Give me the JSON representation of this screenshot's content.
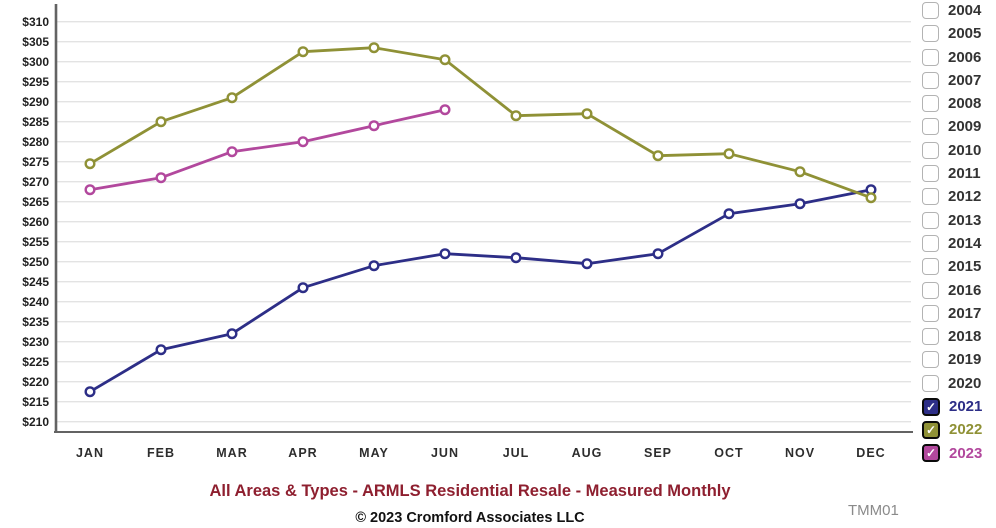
{
  "chart_data": {
    "type": "line",
    "categories": [
      "JAN",
      "FEB",
      "MAR",
      "APR",
      "MAY",
      "JUN",
      "JUL",
      "AUG",
      "SEP",
      "OCT",
      "NOV",
      "DEC"
    ],
    "series": [
      {
        "name": "2021",
        "color": "#2d2e87",
        "values": [
          217.5,
          228,
          232,
          243.5,
          249,
          252,
          251,
          249.5,
          252,
          262,
          264.5,
          268
        ]
      },
      {
        "name": "2022",
        "color": "#8f9136",
        "values": [
          274.5,
          285,
          291,
          302.5,
          303.5,
          300.5,
          286.5,
          287,
          276.5,
          277,
          272.5,
          266
        ]
      },
      {
        "name": "2023",
        "color": "#b2489d",
        "values": [
          268,
          271,
          277.5,
          280,
          284,
          288
        ]
      }
    ],
    "title": "All Areas & Types - ARMLS Residential Resale - Measured Monthly",
    "xlabel": "",
    "ylabel": "",
    "ylim": [
      210,
      310
    ],
    "ytick_step": 5,
    "ytick_labels": [
      "$310",
      "$305",
      "$300",
      "$295",
      "$290",
      "$285",
      "$280",
      "$275",
      "$270",
      "$265",
      "$260",
      "$255",
      "$250",
      "$245",
      "$240",
      "$235",
      "$230",
      "$225",
      "$220",
      "$215",
      "$210"
    ],
    "grid": "horizontal",
    "legend_position": "right"
  },
  "legend": {
    "years": [
      {
        "label": "2004",
        "checked": false
      },
      {
        "label": "2005",
        "checked": false
      },
      {
        "label": "2006",
        "checked": false
      },
      {
        "label": "2007",
        "checked": false
      },
      {
        "label": "2008",
        "checked": false
      },
      {
        "label": "2009",
        "checked": false
      },
      {
        "label": "2010",
        "checked": false
      },
      {
        "label": "2011",
        "checked": false
      },
      {
        "label": "2012",
        "checked": false
      },
      {
        "label": "2013",
        "checked": false
      },
      {
        "label": "2014",
        "checked": false
      },
      {
        "label": "2015",
        "checked": false
      },
      {
        "label": "2016",
        "checked": false
      },
      {
        "label": "2017",
        "checked": false
      },
      {
        "label": "2018",
        "checked": false
      },
      {
        "label": "2019",
        "checked": false
      },
      {
        "label": "2020",
        "checked": false
      },
      {
        "label": "2021",
        "checked": true,
        "color": "#2d2e87"
      },
      {
        "label": "2022",
        "checked": true,
        "color": "#8f9136"
      },
      {
        "label": "2023",
        "checked": true,
        "color": "#b2489d"
      }
    ],
    "check_glyph": "✓"
  },
  "footer": {
    "title": "All Areas & Types - ARMLS Residential Resale - Measured Monthly",
    "copyright": "© 2023 Cromford Associates LLC",
    "code": "TMM01"
  },
  "colors": {
    "title": "#8e1f2f",
    "grid": "#e3e3e3",
    "axis": "#636363",
    "tick_text": "#1f1f1f",
    "code_text": "#8a8a8a"
  }
}
